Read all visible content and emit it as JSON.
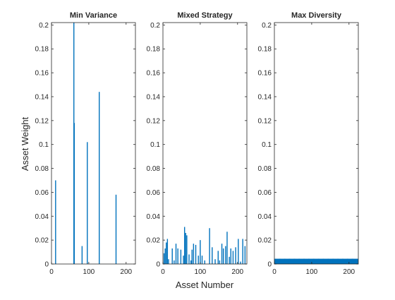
{
  "figure": {
    "ylabel": "Asset Weight",
    "xlabel": "Asset Number",
    "colors": {
      "bar": "#0072bd",
      "axis": "#262626"
    }
  },
  "chart_data": [
    {
      "type": "bar",
      "title": "Min Variance",
      "xlim": [
        0,
        225
      ],
      "ylim": [
        0,
        0.202
      ],
      "xticks": [
        0,
        100,
        200
      ],
      "yticks": [
        0,
        0.02,
        0.04,
        0.06,
        0.08,
        0.1,
        0.12,
        0.14,
        0.16,
        0.18,
        0.2
      ],
      "ytick_labels": [
        "0",
        "0.02",
        "0.04",
        "0.06",
        "0.08",
        "0.1",
        "0.12",
        "0.14",
        "0.16",
        "0.18",
        "0.2"
      ],
      "xtick_labels": [
        "0",
        "100",
        "200"
      ],
      "x": [
        11,
        60,
        61,
        82,
        96,
        128,
        173
      ],
      "values": [
        0.07,
        0.202,
        0.118,
        0.015,
        0.102,
        0.144,
        0.058
      ]
    },
    {
      "type": "bar",
      "title": "Mixed Strategy",
      "xlim": [
        0,
        225
      ],
      "ylim": [
        0,
        0.202
      ],
      "xticks": [
        0,
        100,
        200
      ],
      "yticks": [
        0,
        0.02,
        0.04,
        0.06,
        0.08,
        0.1,
        0.12,
        0.14,
        0.16,
        0.18,
        0.2
      ],
      "ytick_labels": [
        "0",
        "0.02",
        "0.04",
        "0.06",
        "0.08",
        "0.1",
        "0.12",
        "0.14",
        "0.16",
        "0.18",
        "0.2"
      ],
      "xtick_labels": [
        "0",
        "100",
        "200"
      ],
      "x": [
        3,
        6,
        9,
        12,
        15,
        25,
        30,
        35,
        40,
        48,
        55,
        58,
        61,
        64,
        70,
        75,
        78,
        82,
        88,
        95,
        100,
        105,
        112,
        125,
        132,
        140,
        148,
        152,
        158,
        162,
        168,
        172,
        178,
        182,
        188,
        195,
        202,
        208,
        214,
        220
      ],
      "values": [
        0.009,
        0.013,
        0.018,
        0.021,
        0.004,
        0.013,
        0.003,
        0.017,
        0.013,
        0.012,
        0.007,
        0.031,
        0.026,
        0.024,
        0.008,
        0.003,
        0.012,
        0.017,
        0.016,
        0.007,
        0.02,
        0.007,
        0.003,
        0.03,
        0.014,
        0.004,
        0.011,
        0.003,
        0.017,
        0.013,
        0.015,
        0.027,
        0.006,
        0.013,
        0.011,
        0.014,
        0.021,
        0.002,
        0.021,
        0.015
      ]
    },
    {
      "type": "bar",
      "title": "Max Diversity",
      "xlim": [
        0,
        225
      ],
      "ylim": [
        0,
        0.202
      ],
      "xticks": [
        0,
        100,
        200
      ],
      "yticks": [
        0,
        0.02,
        0.04,
        0.06,
        0.08,
        0.1,
        0.12,
        0.14,
        0.16,
        0.18,
        0.2
      ],
      "ytick_labels": [
        "0",
        "0.02",
        "0.04",
        "0.06",
        "0.08",
        "0.1",
        "0.12",
        "0.14",
        "0.16",
        "0.18",
        "0.2"
      ],
      "xtick_labels": [
        "0",
        "100",
        "200"
      ],
      "x": [
        8,
        21,
        34,
        47,
        60,
        73,
        86,
        99,
        112,
        125,
        138,
        151,
        164,
        177,
        190,
        203,
        216
      ],
      "values": [
        0.0044,
        0.0044,
        0.0044,
        0.0044,
        0.0044,
        0.0044,
        0.0044,
        0.0044,
        0.0044,
        0.0044,
        0.0044,
        0.0044,
        0.0044,
        0.0044,
        0.0044,
        0.0044,
        0.0044
      ]
    }
  ]
}
